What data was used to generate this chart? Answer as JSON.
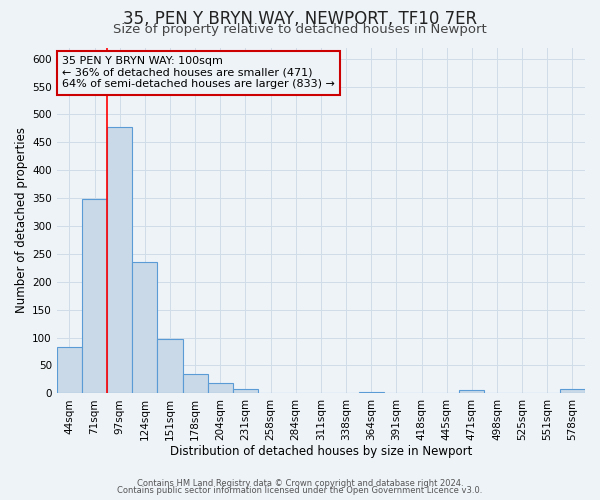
{
  "title": "35, PEN Y BRYN WAY, NEWPORT, TF10 7ER",
  "subtitle": "Size of property relative to detached houses in Newport",
  "xlabel": "Distribution of detached houses by size in Newport",
  "ylabel": "Number of detached properties",
  "bin_labels": [
    "44sqm",
    "71sqm",
    "97sqm",
    "124sqm",
    "151sqm",
    "178sqm",
    "204sqm",
    "231sqm",
    "258sqm",
    "284sqm",
    "311sqm",
    "338sqm",
    "364sqm",
    "391sqm",
    "418sqm",
    "445sqm",
    "471sqm",
    "498sqm",
    "525sqm",
    "551sqm",
    "578sqm"
  ],
  "bar_values": [
    83,
    348,
    478,
    235,
    97,
    35,
    18,
    8,
    0,
    0,
    0,
    0,
    2,
    0,
    0,
    0,
    6,
    0,
    0,
    0,
    7
  ],
  "bar_color": "#c9d9e8",
  "bar_edgecolor": "#5b9bd5",
  "red_line_index": 2,
  "annotation_text": "35 PEN Y BRYN WAY: 100sqm\n← 36% of detached houses are smaller (471)\n64% of semi-detached houses are larger (833) →",
  "annotation_box_edgecolor": "#cc0000",
  "ylim": [
    0,
    620
  ],
  "yticks": [
    0,
    50,
    100,
    150,
    200,
    250,
    300,
    350,
    400,
    450,
    500,
    550,
    600
  ],
  "footnote1": "Contains HM Land Registry data © Crown copyright and database right 2024.",
  "footnote2": "Contains public sector information licensed under the Open Government Licence v3.0.",
  "background_color": "#eef3f8",
  "grid_color": "#d0dce8",
  "title_fontsize": 12,
  "subtitle_fontsize": 9.5,
  "tick_fontsize": 7.5,
  "label_fontsize": 8.5,
  "footnote_fontsize": 6.0
}
